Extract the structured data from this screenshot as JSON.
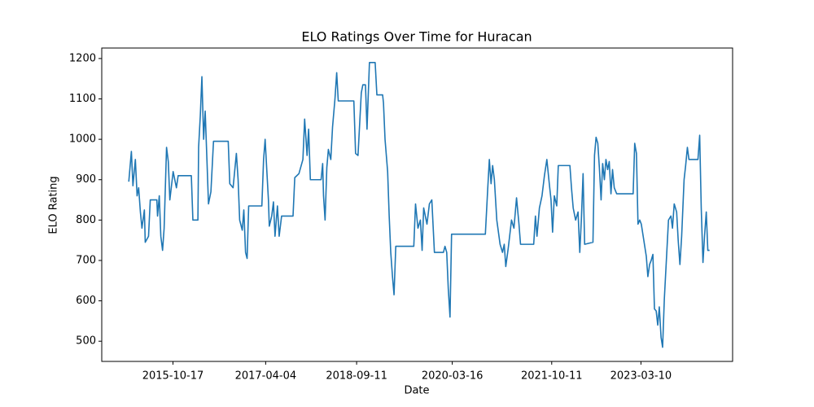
{
  "chart_data": {
    "type": "line",
    "title": "ELO Ratings Over Time for Huracan",
    "x_label": "Date",
    "y_label": "ELO Rating",
    "x": [
      "2015-02-04",
      "2015-02-19",
      "2015-02-28",
      "2015-03-14",
      "2015-03-24",
      "2015-04-02",
      "2015-04-12",
      "2015-04-21",
      "2015-05-05",
      "2015-05-10",
      "2015-05-29",
      "2015-06-08",
      "2015-07-16",
      "2015-07-20",
      "2015-07-30",
      "2015-08-08",
      "2015-08-18",
      "2015-08-27",
      "2015-09-10",
      "2015-09-20",
      "2015-09-29",
      "2015-10-18",
      "2015-11-06",
      "2015-11-16",
      "2016-01-31",
      "2016-02-09",
      "2016-03-09",
      "2016-03-13",
      "2016-03-23",
      "2016-04-01",
      "2016-04-11",
      "2016-04-20",
      "2016-04-30",
      "2016-05-09",
      "2016-05-23",
      "2016-06-07",
      "2016-08-31",
      "2016-09-09",
      "2016-09-28",
      "2016-10-17",
      "2016-10-27",
      "2016-11-05",
      "2016-11-20",
      "2016-11-29",
      "2016-12-09",
      "2016-12-18",
      "2016-12-27",
      "2017-03-13",
      "2017-03-23",
      "2017-04-01",
      "2017-04-11",
      "2017-04-20",
      "2017-04-25",
      "2017-05-09",
      "2017-05-19",
      "2017-05-28",
      "2017-06-11",
      "2017-06-21",
      "2017-07-05",
      "2017-09-09",
      "2017-09-19",
      "2017-10-13",
      "2017-11-05",
      "2017-11-15",
      "2017-11-29",
      "2017-12-08",
      "2017-12-18",
      "2018-02-18",
      "2018-02-27",
      "2018-03-04",
      "2018-03-13",
      "2018-03-23",
      "2018-04-01",
      "2018-04-15",
      "2018-04-25",
      "2018-05-09",
      "2018-05-19",
      "2018-05-28",
      "2018-08-26",
      "2018-09-05",
      "2018-09-19",
      "2018-10-08",
      "2018-10-17",
      "2018-11-01",
      "2018-11-10",
      "2018-11-24",
      "2018-12-27",
      "2019-01-06",
      "2019-02-08",
      "2019-02-13",
      "2019-02-22",
      "2019-03-09",
      "2019-03-18",
      "2019-03-27",
      "2019-04-06",
      "2019-04-15",
      "2019-04-25",
      "2019-08-07",
      "2019-08-17",
      "2019-08-31",
      "2019-09-14",
      "2019-09-24",
      "2019-10-03",
      "2019-10-22",
      "2019-11-05",
      "2019-11-19",
      "2019-12-04",
      "2020-01-25",
      "2020-02-03",
      "2020-02-13",
      "2020-02-22",
      "2020-03-03",
      "2020-03-12",
      "2020-09-23",
      "2020-10-07",
      "2020-10-16",
      "2020-10-26",
      "2020-11-04",
      "2020-11-14",
      "2020-11-28",
      "2020-12-17",
      "2020-12-31",
      "2021-01-10",
      "2021-01-19",
      "2021-02-02",
      "2021-02-21",
      "2021-03-07",
      "2021-03-22",
      "2021-04-05",
      "2021-04-14",
      "2021-06-29",
      "2021-07-09",
      "2021-07-18",
      "2021-08-01",
      "2021-08-16",
      "2021-08-30",
      "2021-09-13",
      "2021-09-27",
      "2021-10-07",
      "2021-10-16",
      "2021-10-26",
      "2021-11-09",
      "2021-11-18",
      "2022-01-24",
      "2022-02-02",
      "2022-02-12",
      "2022-02-26",
      "2022-03-12",
      "2022-03-22",
      "2022-03-31",
      "2022-04-10",
      "2022-04-19",
      "2022-06-06",
      "2022-06-15",
      "2022-06-24",
      "2022-07-04",
      "2022-07-13",
      "2022-07-23",
      "2022-08-01",
      "2022-08-11",
      "2022-08-20",
      "2022-08-30",
      "2022-09-08",
      "2022-09-18",
      "2022-09-27",
      "2022-10-07",
      "2022-10-21",
      "2023-01-24",
      "2023-02-02",
      "2023-02-12",
      "2023-02-21",
      "2023-03-03",
      "2023-03-12",
      "2023-04-10",
      "2023-04-19",
      "2023-04-29",
      "2023-05-08",
      "2023-05-18",
      "2023-05-27",
      "2023-06-06",
      "2023-06-15",
      "2023-06-24",
      "2023-07-04",
      "2023-07-13",
      "2023-07-23",
      "2023-08-16",
      "2023-08-30",
      "2023-09-08",
      "2023-09-18",
      "2023-10-02",
      "2023-10-11",
      "2023-10-21",
      "2023-10-31",
      "2023-11-14",
      "2023-11-23",
      "2023-12-03",
      "2023-12-12",
      "2024-02-02",
      "2024-02-12",
      "2024-02-21",
      "2024-03-02",
      "2024-03-11",
      "2024-03-21",
      "2024-03-30",
      "2024-04-09"
    ],
    "values": [
      895,
      970,
      885,
      950,
      860,
      880,
      820,
      780,
      825,
      745,
      760,
      850,
      850,
      810,
      860,
      760,
      725,
      780,
      980,
      945,
      850,
      920,
      880,
      910,
      910,
      800,
      800,
      980,
      1060,
      1155,
      1000,
      1070,
      950,
      840,
      870,
      995,
      995,
      890,
      880,
      965,
      900,
      800,
      775,
      825,
      720,
      705,
      835,
      835,
      950,
      1000,
      920,
      850,
      785,
      810,
      845,
      760,
      835,
      760,
      810,
      810,
      905,
      915,
      950,
      1050,
      960,
      1025,
      900,
      900,
      940,
      860,
      800,
      930,
      975,
      950,
      1030,
      1100,
      1165,
      1095,
      1095,
      965,
      960,
      1115,
      1135,
      1135,
      1025,
      1190,
      1190,
      1110,
      1110,
      1090,
      1000,
      920,
      810,
      720,
      660,
      615,
      735,
      735,
      840,
      780,
      800,
      725,
      830,
      790,
      840,
      850,
      720,
      720,
      735,
      720,
      630,
      560,
      765,
      765,
      880,
      950,
      890,
      935,
      900,
      800,
      740,
      720,
      740,
      685,
      730,
      800,
      780,
      855,
      790,
      740,
      740,
      810,
      760,
      830,
      860,
      910,
      950,
      890,
      850,
      770,
      860,
      835,
      935,
      935,
      880,
      830,
      800,
      820,
      720,
      800,
      915,
      740,
      745,
      960,
      1005,
      990,
      930,
      850,
      940,
      900,
      950,
      925,
      945,
      865,
      925,
      880,
      865,
      865,
      990,
      965,
      790,
      800,
      790,
      710,
      660,
      690,
      700,
      715,
      580,
      575,
      540,
      585,
      510,
      485,
      605,
      800,
      810,
      780,
      840,
      820,
      750,
      690,
      760,
      900,
      935,
      980,
      950,
      950,
      1010,
      830,
      695,
      760,
      820,
      725,
      725
    ],
    "color": "#1f77b4",
    "xlim": [
      "2014-09-01",
      "2024-08-20"
    ],
    "xticks": [
      "2015-10-17",
      "2017-04-04",
      "2018-09-11",
      "2020-03-16",
      "2021-10-11",
      "2023-03-10"
    ],
    "ylim": [
      450,
      1226
    ],
    "yticks": [
      500,
      600,
      700,
      800,
      900,
      1000,
      1100,
      1200
    ],
    "grid": false
  }
}
